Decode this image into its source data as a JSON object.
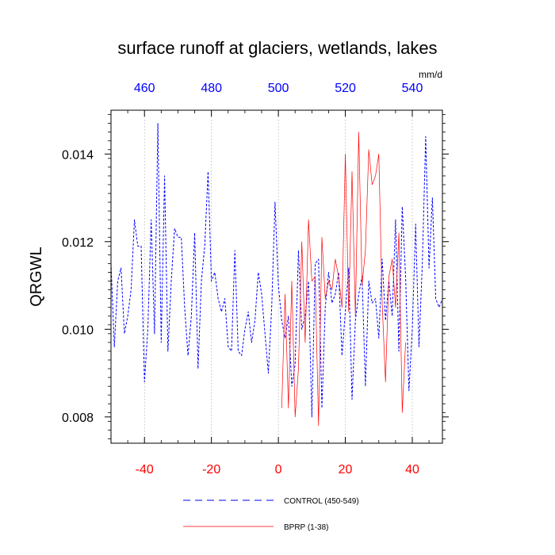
{
  "chart_data": {
    "type": "line",
    "title": "surface runoff at glaciers, wetlands, lakes",
    "ylabel": "QRGWL",
    "units_label": "mm/d",
    "xlim": [
      -50,
      49
    ],
    "ylim": [
      0.0074,
      0.015
    ],
    "xticks_bottom": [
      -40,
      -20,
      0,
      20,
      40
    ],
    "xticks_bottom_labels": [
      "-40",
      "-20",
      "0",
      "20",
      "40"
    ],
    "xticks_top_labels": [
      "460",
      "480",
      "500",
      "520",
      "540"
    ],
    "yticks": [
      0.008,
      0.01,
      0.012,
      0.014
    ],
    "ytick_labels": [
      "0.008",
      "0.010",
      "0.012",
      "0.014"
    ],
    "grid": "vertical dotted at major ticks",
    "legend_position": "bottom",
    "colors": {
      "control": "#0000ff",
      "bprp": "#ff0000",
      "top_axis": "#0000ff",
      "bottom_axis": "#ff0000"
    },
    "series": [
      {
        "name": "CONTROL (450-549)",
        "style": "dashed",
        "x": [
          -50,
          -49,
          -48,
          -47,
          -46,
          -45,
          -44,
          -43,
          -42,
          -41,
          -40,
          -39,
          -38,
          -37,
          -36,
          -35,
          -34,
          -33,
          -32,
          -31,
          -30,
          -29,
          -28,
          -27,
          -26,
          -25,
          -24,
          -23,
          -22,
          -21,
          -20,
          -19,
          -18,
          -17,
          -16,
          -15,
          -14,
          -13,
          -12,
          -11,
          -10,
          -9,
          -8,
          -7,
          -6,
          -5,
          -4,
          -3,
          -2,
          -1,
          0,
          1,
          2,
          3,
          4,
          5,
          6,
          7,
          8,
          9,
          10,
          11,
          12,
          13,
          14,
          15,
          16,
          17,
          18,
          19,
          20,
          21,
          22,
          23,
          24,
          25,
          26,
          27,
          28,
          29,
          30,
          31,
          32,
          33,
          34,
          35,
          36,
          37,
          38,
          39,
          40,
          41,
          42,
          43,
          44,
          45,
          46,
          47,
          48,
          49
        ],
        "values": [
          0.0115,
          0.0096,
          0.0111,
          0.0114,
          0.0099,
          0.0103,
          0.0109,
          0.0125,
          0.0119,
          0.0119,
          0.0088,
          0.01,
          0.0125,
          0.0099,
          0.0147,
          0.0097,
          0.0135,
          0.0095,
          0.0111,
          0.0123,
          0.0121,
          0.0121,
          0.0105,
          0.0094,
          0.0103,
          0.0122,
          0.0091,
          0.0111,
          0.0119,
          0.0136,
          0.0111,
          0.0113,
          0.0107,
          0.0104,
          0.0107,
          0.0096,
          0.0095,
          0.0118,
          0.0095,
          0.0094,
          0.01,
          0.0104,
          0.0097,
          0.0102,
          0.0113,
          0.0108,
          0.0099,
          0.009,
          0.0105,
          0.0129,
          0.011,
          0.0102,
          0.0098,
          0.0103,
          0.0087,
          0.0092,
          0.0118,
          0.01,
          0.0103,
          0.0111,
          0.008,
          0.0115,
          0.0116,
          0.0082,
          0.0105,
          0.0113,
          0.0106,
          0.0108,
          0.0113,
          0.0094,
          0.0104,
          0.0114,
          0.0084,
          0.0102,
          0.0108,
          0.0112,
          0.0087,
          0.0111,
          0.0106,
          0.0107,
          0.0098,
          0.0116,
          0.0102,
          0.0111,
          0.0103,
          0.0125,
          0.0095,
          0.0128,
          0.0112,
          0.0086,
          0.01,
          0.0124,
          0.0096,
          0.0115,
          0.0144,
          0.0114,
          0.013,
          0.0107,
          0.0105,
          0.0107
        ]
      },
      {
        "name": "BPRP (1-38)",
        "style": "solid",
        "x": [
          1,
          2,
          3,
          4,
          5,
          6,
          7,
          8,
          9,
          10,
          11,
          12,
          13,
          14,
          15,
          16,
          17,
          18,
          19,
          20,
          21,
          22,
          23,
          24,
          25,
          26,
          27,
          28,
          29,
          30,
          31,
          32,
          33,
          34,
          35,
          36,
          37,
          38
        ],
        "values": [
          0.0082,
          0.0108,
          0.0082,
          0.0111,
          0.008,
          0.0091,
          0.012,
          0.0097,
          0.0125,
          0.0111,
          0.0112,
          0.0078,
          0.0121,
          0.0107,
          0.0111,
          0.0109,
          0.0116,
          0.0112,
          0.0105,
          0.014,
          0.0104,
          0.0136,
          0.0103,
          0.0145,
          0.011,
          0.0118,
          0.0141,
          0.0133,
          0.0135,
          0.014,
          0.0106,
          0.0088,
          0.0112,
          0.0116,
          0.0105,
          0.0122,
          0.0081,
          0.0097
        ]
      }
    ]
  }
}
